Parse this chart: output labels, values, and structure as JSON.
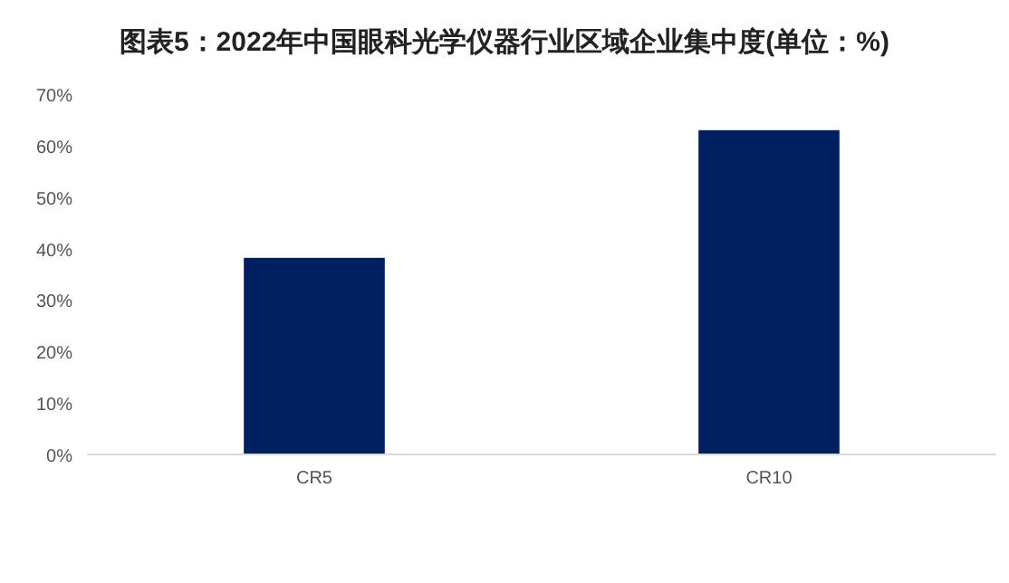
{
  "chart_data": {
    "type": "bar",
    "title": "图表5：2022年中国眼科光学仪器行业区域企业集中度(单位：%)",
    "categories": [
      "CR5",
      "CR10"
    ],
    "values": [
      38.2,
      63.0
    ],
    "color": "#001f5f",
    "ylim": [
      0,
      70
    ],
    "yticks": [
      {
        "value": 0,
        "label": "0%"
      },
      {
        "value": 10,
        "label": "10%"
      },
      {
        "value": 20,
        "label": "20%"
      },
      {
        "value": 30,
        "label": "30%"
      },
      {
        "value": 40,
        "label": "40%"
      },
      {
        "value": 50,
        "label": "50%"
      },
      {
        "value": 60,
        "label": "60%"
      },
      {
        "value": 70,
        "label": "70%"
      }
    ],
    "grid": false
  }
}
